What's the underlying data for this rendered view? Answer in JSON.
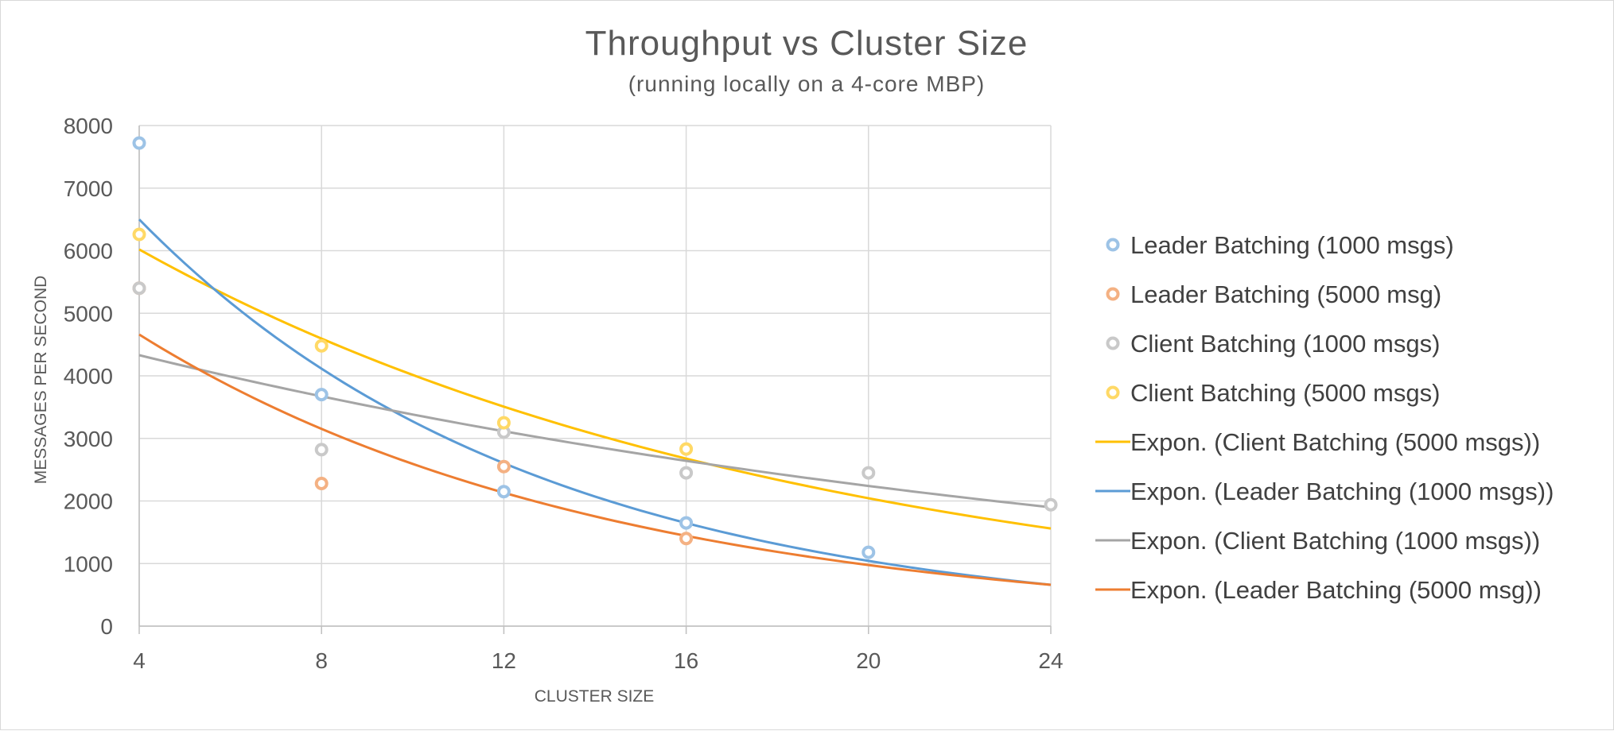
{
  "chart_data": {
    "type": "scatter",
    "title": "Throughput vs Cluster Size",
    "subtitle": "(running locally on a 4-core MBP)",
    "xlabel": "CLUSTER SIZE",
    "ylabel": "MESSAGES PER SECOND",
    "xlim": [
      4,
      24
    ],
    "ylim": [
      0,
      8000
    ],
    "xticks": [
      4,
      8,
      12,
      16,
      20,
      24
    ],
    "yticks": [
      0,
      1000,
      2000,
      3000,
      4000,
      5000,
      6000,
      7000,
      8000
    ],
    "grid": true,
    "legend_position": "right",
    "series": [
      {
        "name": "Leader Batching (1000 msgs)",
        "color": "#9dc3e6",
        "points": [
          [
            4,
            7720
          ],
          [
            8,
            3700
          ],
          [
            12,
            2150
          ],
          [
            16,
            1650
          ],
          [
            20,
            1180
          ]
        ]
      },
      {
        "name": "Leader Batching (5000 msg)",
        "color": "#f4b183",
        "points": [
          [
            4,
            5400
          ],
          [
            8,
            2280
          ],
          [
            12,
            2550
          ],
          [
            16,
            1400
          ]
        ]
      },
      {
        "name": "Client Batching (1000 msgs)",
        "color": "#c9c9c9",
        "points": [
          [
            4,
            5400
          ],
          [
            8,
            2820
          ],
          [
            12,
            3100
          ],
          [
            16,
            2450
          ],
          [
            20,
            2450
          ],
          [
            24,
            1940
          ]
        ]
      },
      {
        "name": "Client Batching (5000 msgs)",
        "color": "#ffd966",
        "points": [
          [
            4,
            6260
          ],
          [
            8,
            4480
          ],
          [
            12,
            3250
          ],
          [
            16,
            2830
          ]
        ]
      }
    ],
    "trendlines": [
      {
        "name": "Expon.  (Client Batching (5000 msgs))",
        "color": "#ffc000",
        "type": "exponential",
        "points": [
          [
            4,
            6020
          ],
          [
            24,
            1560
          ]
        ]
      },
      {
        "name": "Expon.  (Leader Batching (1000 msgs))",
        "color": "#5b9bd5",
        "type": "exponential",
        "points": [
          [
            4,
            6500
          ],
          [
            24,
            660
          ]
        ]
      },
      {
        "name": "Expon.  (Client Batching (1000 msgs))",
        "color": "#a5a5a5",
        "type": "exponential",
        "points": [
          [
            4,
            4330
          ],
          [
            24,
            1900
          ]
        ]
      },
      {
        "name": "Expon.  (Leader Batching (5000 msg))",
        "color": "#ed7d31",
        "type": "exponential",
        "points": [
          [
            4,
            4660
          ],
          [
            24,
            660
          ]
        ]
      }
    ]
  }
}
